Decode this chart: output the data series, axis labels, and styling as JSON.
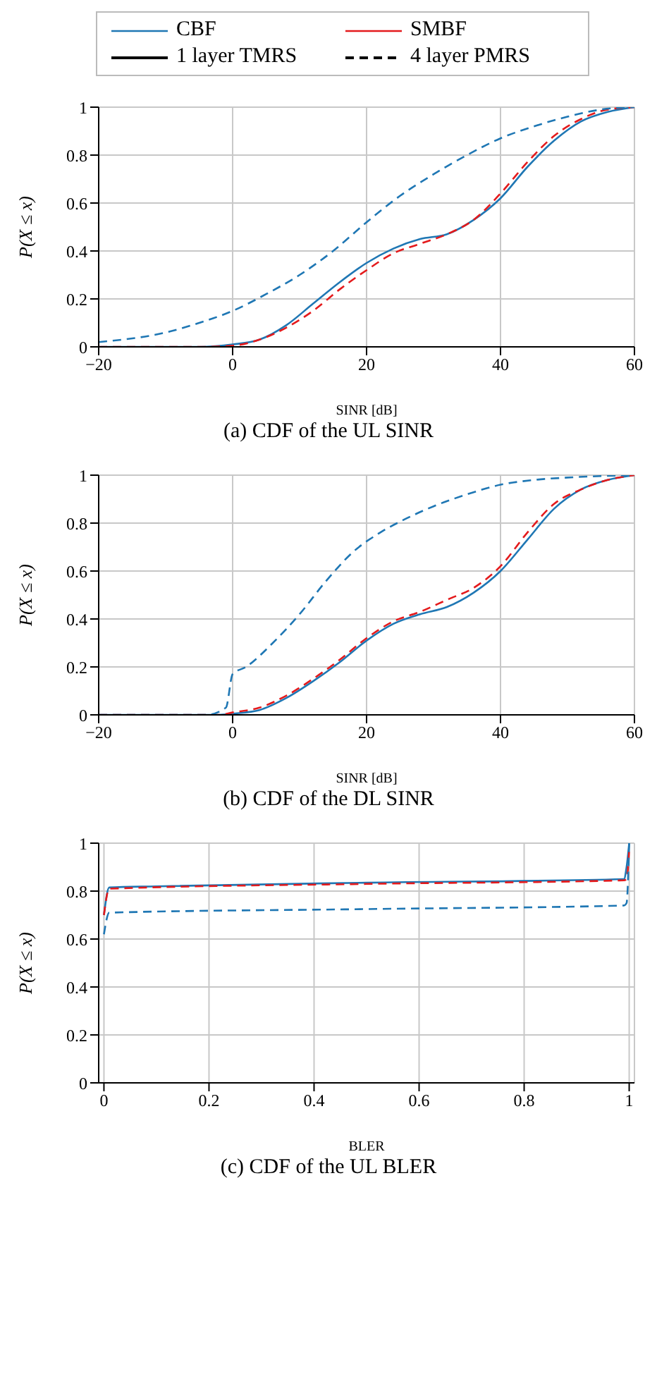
{
  "chart_data": [
    {
      "type": "line",
      "title": "(a) CDF of the UL SINR",
      "xlabel": "SINR [dB]",
      "ylabel": "P(X ≤ x)",
      "xlim": [
        -20,
        60
      ],
      "xticks": [
        -20,
        0,
        20,
        40,
        60
      ],
      "ylim": [
        0,
        1
      ],
      "yticks": [
        0,
        0.2,
        0.4,
        0.6,
        0.8,
        1
      ],
      "grid": true,
      "annotations": [
        "CBF",
        "SMBF",
        "1 layer TMRS",
        "4 layer PMRS"
      ],
      "series": [
        {
          "color": "#1f77b4",
          "line_style": "solid",
          "x": [
            -20,
            -5,
            0,
            4,
            8,
            12,
            16,
            20,
            24,
            28,
            32,
            36,
            40,
            44,
            48,
            52,
            56,
            60
          ],
          "values": [
            0,
            0,
            0.01,
            0.03,
            0.09,
            0.18,
            0.27,
            0.35,
            0.41,
            0.45,
            0.47,
            0.53,
            0.62,
            0.75,
            0.86,
            0.94,
            0.98,
            1
          ]
        },
        {
          "color": "#e41a1c",
          "line_style": "dashed",
          "x": [
            -20,
            -5,
            0,
            4,
            8,
            12,
            16,
            20,
            24,
            28,
            32,
            36,
            40,
            44,
            48,
            52,
            56,
            60
          ],
          "values": [
            0,
            0,
            0.005,
            0.03,
            0.08,
            0.15,
            0.24,
            0.32,
            0.39,
            0.43,
            0.47,
            0.53,
            0.64,
            0.77,
            0.88,
            0.95,
            0.99,
            1
          ]
        },
        {
          "color": "#1f77b4",
          "line_style": "dashed",
          "x": [
            -20,
            -10,
            -5,
            0,
            5,
            10,
            15,
            20,
            25,
            30,
            35,
            40,
            45,
            50,
            55,
            60
          ],
          "values": [
            0.02,
            0.06,
            0.1,
            0.15,
            0.22,
            0.3,
            0.4,
            0.52,
            0.63,
            0.72,
            0.8,
            0.87,
            0.92,
            0.96,
            0.99,
            1
          ]
        }
      ]
    },
    {
      "type": "line",
      "title": "(b) CDF of the DL SINR",
      "xlabel": "SINR [dB]",
      "ylabel": "P(X ≤ x)",
      "xlim": [
        -20,
        60
      ],
      "xticks": [
        -20,
        0,
        20,
        40,
        60
      ],
      "ylim": [
        0,
        1
      ],
      "yticks": [
        0,
        0.2,
        0.4,
        0.6,
        0.8,
        1
      ],
      "grid": true,
      "series": [
        {
          "color": "#1f77b4",
          "line_style": "solid",
          "x": [
            -20,
            -2,
            0,
            4,
            8,
            12,
            16,
            20,
            24,
            28,
            32,
            36,
            40,
            44,
            48,
            52,
            56,
            60
          ],
          "values": [
            0,
            0,
            0.005,
            0.02,
            0.07,
            0.14,
            0.22,
            0.31,
            0.38,
            0.42,
            0.45,
            0.51,
            0.6,
            0.73,
            0.86,
            0.94,
            0.98,
            1
          ]
        },
        {
          "color": "#e41a1c",
          "line_style": "dashed",
          "x": [
            -20,
            -2,
            0,
            4,
            8,
            12,
            16,
            20,
            24,
            28,
            32,
            36,
            40,
            44,
            48,
            52,
            56,
            60
          ],
          "values": [
            0,
            0,
            0.01,
            0.03,
            0.08,
            0.15,
            0.23,
            0.32,
            0.39,
            0.43,
            0.48,
            0.53,
            0.62,
            0.76,
            0.88,
            0.94,
            0.98,
            1
          ]
        },
        {
          "color": "#1f77b4",
          "line_style": "dashed",
          "x": [
            -20,
            -4,
            -1,
            0,
            2,
            6,
            10,
            14,
            18,
            22,
            26,
            30,
            35,
            40,
            45,
            50,
            60
          ],
          "values": [
            0,
            0,
            0.03,
            0.17,
            0.2,
            0.3,
            0.42,
            0.56,
            0.68,
            0.76,
            0.82,
            0.87,
            0.92,
            0.96,
            0.98,
            0.99,
            1
          ]
        }
      ]
    },
    {
      "type": "line",
      "title": "(c) CDF of the UL BLER",
      "xlabel": "BLER",
      "ylabel": "P(X ≤ x)",
      "xlim": [
        -0.01,
        1.01
      ],
      "xticks": [
        0,
        0.2,
        0.4,
        0.6,
        0.8,
        1
      ],
      "ylim": [
        0,
        1
      ],
      "yticks": [
        0,
        0.2,
        0.4,
        0.6,
        0.8,
        1
      ],
      "grid": true,
      "series": [
        {
          "color": "#1f77b4",
          "line_style": "solid",
          "x": [
            0,
            0.01,
            0.1,
            0.5,
            0.99,
            0.995,
            1
          ],
          "values": [
            0.7,
            0.815,
            0.82,
            0.835,
            0.85,
            0.9,
            1
          ]
        },
        {
          "color": "#e41a1c",
          "line_style": "dashed",
          "x": [
            0,
            0.01,
            0.5,
            0.99,
            0.995,
            1
          ],
          "values": [
            0.7,
            0.81,
            0.83,
            0.845,
            0.85,
            0.97
          ]
        },
        {
          "color": "#1f77b4",
          "line_style": "dashed",
          "x": [
            0,
            0.01,
            0.5,
            0.99,
            0.995,
            1
          ],
          "values": [
            0.62,
            0.71,
            0.725,
            0.74,
            0.75,
            1
          ]
        }
      ]
    }
  ]
}
